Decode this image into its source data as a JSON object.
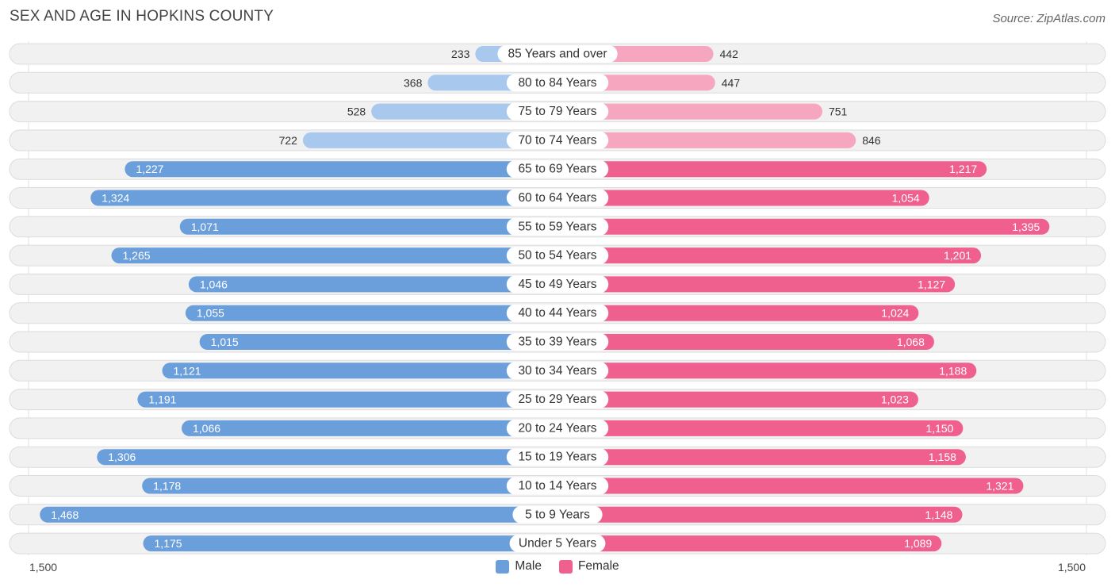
{
  "title": "SEX AND AGE IN HOPKINS COUNTY",
  "source": "Source: ZipAtlas.com",
  "legend": {
    "male": "Male",
    "female": "Female"
  },
  "axis": {
    "left_label": "1,500",
    "right_label": "1,500"
  },
  "colors": {
    "male": "#6a9fdc",
    "female": "#f0608f",
    "male_light": "#a9c8ee",
    "female_light": "#f7a6c0"
  },
  "chart_data": {
    "type": "bar",
    "orientation": "horizontal-butterfly",
    "title": "SEX AND AGE IN HOPKINS COUNTY",
    "xlim": [
      0,
      1500
    ],
    "categories": [
      "85 Years and over",
      "80 to 84 Years",
      "75 to 79 Years",
      "70 to 74 Years",
      "65 to 69 Years",
      "60 to 64 Years",
      "55 to 59 Years",
      "50 to 54 Years",
      "45 to 49 Years",
      "40 to 44 Years",
      "35 to 39 Years",
      "30 to 34 Years",
      "25 to 29 Years",
      "20 to 24 Years",
      "15 to 19 Years",
      "10 to 14 Years",
      "5 to 9 Years",
      "Under 5 Years"
    ],
    "series": [
      {
        "name": "Male",
        "values": [
          233,
          368,
          528,
          722,
          1227,
          1324,
          1071,
          1265,
          1046,
          1055,
          1015,
          1121,
          1191,
          1066,
          1306,
          1178,
          1468,
          1175
        ],
        "labels": [
          "233",
          "368",
          "528",
          "722",
          "1,227",
          "1,324",
          "1,071",
          "1,265",
          "1,046",
          "1,055",
          "1,015",
          "1,121",
          "1,191",
          "1,066",
          "1,306",
          "1,178",
          "1,468",
          "1,175"
        ]
      },
      {
        "name": "Female",
        "values": [
          442,
          447,
          751,
          846,
          1217,
          1054,
          1395,
          1201,
          1127,
          1024,
          1068,
          1188,
          1023,
          1150,
          1158,
          1321,
          1148,
          1089
        ],
        "labels": [
          "442",
          "447",
          "751",
          "846",
          "1,217",
          "1,054",
          "1,395",
          "1,201",
          "1,127",
          "1,024",
          "1,068",
          "1,188",
          "1,023",
          "1,150",
          "1,158",
          "1,321",
          "1,148",
          "1,089"
        ]
      }
    ]
  }
}
